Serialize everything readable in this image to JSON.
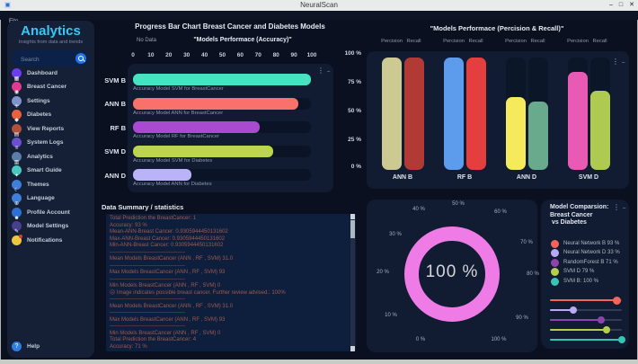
{
  "window": {
    "title": "NeuralScan",
    "menu_file": "File",
    "controls": {
      "minimize": "–",
      "maximize": "□",
      "close": "✕"
    }
  },
  "sidebar": {
    "title": "Analytics",
    "subtitle": "Insights from data and trends",
    "search_placeholder": "Search",
    "items": [
      {
        "label": "Dashboard",
        "icon": "dashboard-icon",
        "color": "#6d3bf0",
        "glyph": "▦"
      },
      {
        "label": "Breast Cancer",
        "icon": "breast-cancer-icon",
        "color": "#e23a8e",
        "glyph": "◉"
      },
      {
        "label": "Settings",
        "icon": "settings-gear-icon",
        "color": "#7d93c9",
        "glyph": "✳"
      },
      {
        "label": "Diabetes",
        "icon": "diabetes-drop-icon",
        "color": "#e8613c",
        "glyph": "◆"
      },
      {
        "label": "View Reports",
        "icon": "view-reports-icon",
        "color": "#b0513d",
        "glyph": "▤"
      },
      {
        "label": "System Logs",
        "icon": "system-logs-icon",
        "color": "#6a4fd0",
        "glyph": "≡"
      },
      {
        "label": "Analytics",
        "icon": "analytics-chart-icon",
        "color": "#5b7ea8",
        "glyph": "▥"
      },
      {
        "label": "Smart Guide",
        "icon": "smart-guide-icon",
        "color": "#49c7c0",
        "glyph": "✦"
      },
      {
        "label": "Themes",
        "icon": "themes-moon-icon",
        "color": "#3f7fd6",
        "glyph": "☾"
      },
      {
        "label": "Language",
        "icon": "language-globe-icon",
        "color": "#3f7fd6",
        "glyph": "⊕"
      },
      {
        "label": "Profile Account",
        "icon": "profile-person-icon",
        "color": "#2f6fd0",
        "glyph": "☻"
      },
      {
        "label": "Model Settings",
        "icon": "model-settings-icon",
        "color": "#4a3f8f",
        "glyph": "✎"
      },
      {
        "label": "Notifications",
        "icon": "notifications-bell-icon",
        "color": "#f0c63f",
        "glyph": "",
        "badge": true
      }
    ],
    "help_label": "Help",
    "help_color": "#2f7de0"
  },
  "accuracy_chart": {
    "title": "Progress Bar Chart Breast Cancer  and Diabetes Models",
    "no_data_label": "No Data",
    "subtitle": "\"Models Performace (Accuracy)\"",
    "x_ticks": [
      "0",
      "10",
      "20",
      "30",
      "40",
      "50",
      "60",
      "70",
      "80",
      "90",
      "100"
    ],
    "rows": [
      {
        "label": "SVM B",
        "value": 100,
        "color": "#46e3c3",
        "caption": "Accuracy Model SVM for BreastCancer"
      },
      {
        "label": "ANN B",
        "value": 93,
        "color": "#f8716b",
        "caption": "Accuracy Model ANN for BreastCancer"
      },
      {
        "label": "RF B",
        "value": 71,
        "color": "#a94ad0",
        "caption": "Accuracy Model RF for BreastCancer"
      },
      {
        "label": "SVM D",
        "value": 79,
        "color": "#bdd44e",
        "caption": "Accuracy Model SVM for Diabetes"
      },
      {
        "label": "ANN D",
        "value": 33,
        "color": "#bab3f8",
        "caption": "Accuracy Model ANN for Diabetes"
      }
    ]
  },
  "pr_chart": {
    "title": "\"Models Performace (Percision & Recall)\"",
    "precision_label": "Percision",
    "recall_label": "Recall",
    "y_ticks": [
      "100 %",
      "75 %",
      "50 %",
      "25 %",
      "0 %"
    ],
    "groups": [
      {
        "label": "ANN B",
        "precision": 100,
        "recall": 100,
        "precision_color": "#cdc993",
        "recall_color": "#b23a36"
      },
      {
        "label": "RF B",
        "precision": 100,
        "recall": 100,
        "precision_color": "#5d9cec",
        "recall_color": "#e53e3e"
      },
      {
        "label": "ANN D",
        "precision": 65,
        "recall": 61,
        "precision_color": "#f5e95c",
        "recall_color": "#68aa8b"
      },
      {
        "label": "SVM D",
        "precision": 87,
        "recall": 70,
        "precision_color": "#e85ab4",
        "recall_color": "#aeca50"
      }
    ]
  },
  "summary": {
    "title": "Data Summary / statistics",
    "lines": [
      "Total Prediction the BreastCancer: 1",
      "Accuracy: 93 %",
      "Mean-ANN-Breast Cancer: 0.9305944450131602",
      "Max-ANN-Breast Cancer: 0.9305944450131602",
      "Min-ANN-Breast Cancer: 0.9305944450131602",
      "------------------------------------------",
      "Mean Models BreastCancer (ANN , RF , SVM) 31.0",
      "------------------------------------------",
      "Max Models BreastCancer (ANN , RF , SVM) 93",
      "------------------------------------------",
      "Min Models BreastCancer (ANN , RF , SVM) 0",
      "☹ Image indicates possible breast cancer. Further review advised.: 100%",
      "------------------------------------------",
      "Mean Models BreastCancer (ANN , RF , SVM) 31.0",
      "------------------------------------------",
      "Max Models BreastCancer (ANN , RF , SVM) 93",
      "------------------------------------------",
      "Min Models BreastCancer (ANN , RF , SVM) 0",
      "Total Prediction the BreastCancer: 4",
      "Accuracy: 71 %"
    ]
  },
  "gauge": {
    "center_label": "100 %",
    "ring_color": "#ef7ce6",
    "tick_labels": [
      "0 %",
      "10 %",
      "20 %",
      "30 %",
      "40 %",
      "50 %",
      "60 %",
      "70 %",
      "80 %",
      "90 %",
      "100 %"
    ]
  },
  "comparison": {
    "title_lines": [
      "Model Comparsion:",
      "Breast Cancer",
      " vs Diabetes"
    ],
    "entries": [
      {
        "label": "Neural Network B 93 %",
        "value": 93,
        "color": "#f4645c"
      },
      {
        "label": "Neural Network D 33 %",
        "value": 33,
        "color": "#b9aaf3"
      },
      {
        "label": "RandomForest B 71 %",
        "value": 71,
        "color": "#8e44ad"
      },
      {
        "label": "SVM D 79 %",
        "value": 79,
        "color": "#b5cc4e"
      },
      {
        "label": "SVM B: 100 %",
        "value": 100,
        "color": "#35c4b5"
      }
    ]
  }
}
